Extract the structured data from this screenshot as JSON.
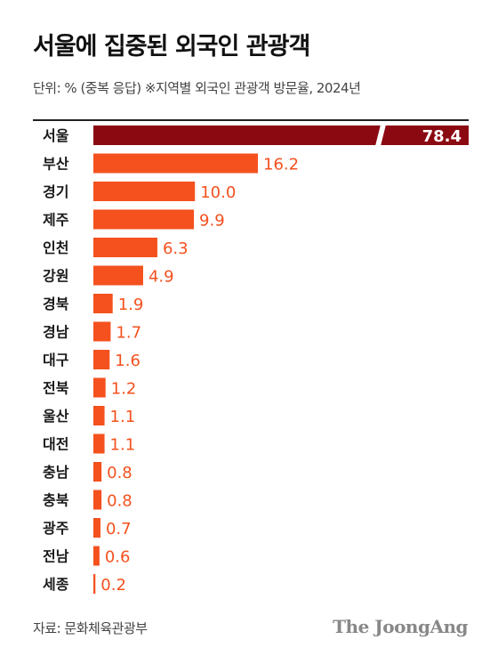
{
  "header": {
    "title": "서울에 집중된 외국인 관광객",
    "subtitle": "단위: % (중복 응답) ※지역별 외국인 관광객 방문율, 2024년"
  },
  "footer": {
    "source": "자료: 문화체육관광부",
    "logo": "The JoongAng"
  },
  "colors": {
    "highlight": "#8b0a12",
    "bar": "#f4511e",
    "label_inside": "#ffffff"
  },
  "chart_data": {
    "type": "bar",
    "orientation": "horizontal",
    "categories": [
      "서울",
      "부산",
      "경기",
      "제주",
      "인천",
      "강원",
      "경북",
      "경남",
      "대구",
      "전북",
      "울산",
      "대전",
      "충남",
      "충북",
      "광주",
      "전남",
      "세종"
    ],
    "values": [
      78.4,
      16.2,
      10.0,
      9.9,
      6.3,
      4.9,
      1.9,
      1.7,
      1.6,
      1.2,
      1.1,
      1.1,
      0.8,
      0.8,
      0.7,
      0.6,
      0.2
    ],
    "value_labels": [
      "78.4",
      "16.2",
      "10.0",
      "9.9",
      "6.3",
      "4.9",
      "1.9",
      "1.7",
      "1.6",
      "1.2",
      "1.1",
      "1.1",
      "0.8",
      "0.8",
      "0.7",
      "0.6",
      "0.2"
    ],
    "highlight_category": "서울",
    "axis_break": true,
    "title": "",
    "xlabel": "",
    "ylabel": ""
  }
}
